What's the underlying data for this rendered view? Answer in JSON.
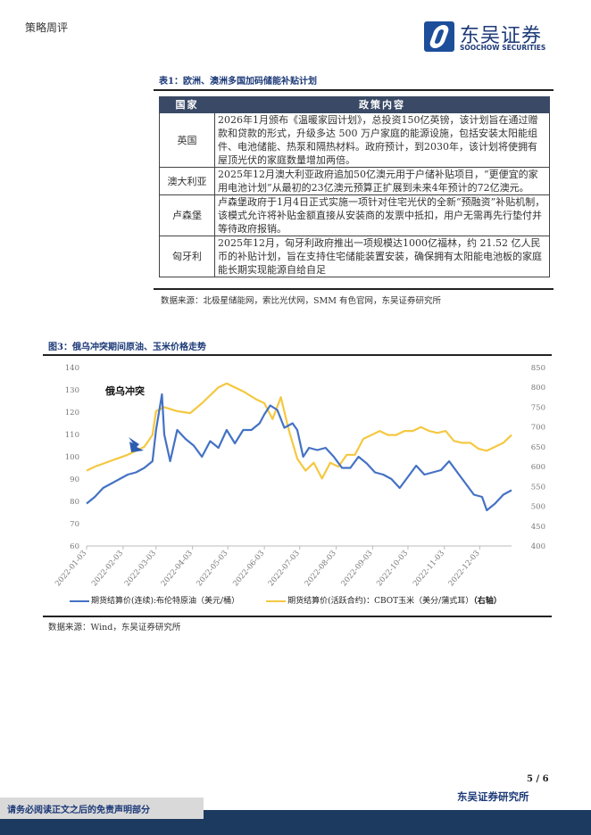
{
  "header": {
    "title": "策略周评",
    "logo_cn": "东吴证券",
    "logo_en": "SOOCHOW SECURITIES"
  },
  "table1": {
    "caption": "表1：欧洲、澳洲多国加码储能补贴计划",
    "headers": [
      "国家",
      "政策内容"
    ],
    "rows": [
      {
        "country": "英国",
        "content": "2026年1月颁布《温暖家园计划》，总投资150亿英镑，该计划旨在通过赠款和贷款的形式，升级多达 500 万户家庭的能源设施，包括安装太阳能组件、电池储能、热泵和隔热材料。政府预计，到2030年，该计划将使拥有屋顶光伏的家庭数量增加两倍。"
      },
      {
        "country": "澳大利亚",
        "content": "2025年12月澳大利亚政府追加50亿澳元用于户储补贴项目，“更便宜的家用电池计划”从最初的23亿澳元预算正扩展到未来4年预计的72亿澳元。"
      },
      {
        "country": "卢森堡",
        "content": "卢森堡政府于1月4日正式实施一项针对住宅光伏的全新“预融资”补贴机制，该模式允许将补贴金额直接从安装商的发票中抵扣，用户无需再先行垫付并等待政府报销。"
      },
      {
        "country": "匈牙利",
        "content": "2025年12月，匈牙利政府推出一项规模达1000亿福林，约 21.52 亿人民币的补贴计划，旨在支持住宅储能装置安装，确保拥有太阳能电池板的家庭能长期实现能源自给自足"
      }
    ],
    "source": "数据来源：北极星储能网，索比光伏网，SMM 有色官网，东吴证券研究所"
  },
  "figure3": {
    "caption": "图3：俄乌冲突期间原油、玉米价格走势",
    "source": "数据来源：Wind，东吴证券研究所"
  },
  "chart_data": {
    "type": "line",
    "title": "俄乌冲突期间原油、玉米价格走势",
    "annotation": "俄乌冲突",
    "x_ticks": [
      "2022-01-03",
      "2022-02-03",
      "2022-03-03",
      "2022-04-03",
      "2022-05-03",
      "2022-06-03",
      "2022-07-03",
      "2022-08-03",
      "2022-09-03",
      "2022-10-03",
      "2022-11-03",
      "2022-12-03"
    ],
    "x_tick_days": [
      3,
      34,
      62,
      93,
      123,
      154,
      184,
      215,
      246,
      276,
      307,
      337
    ],
    "xlim_days": [
      3,
      364
    ],
    "y_left": {
      "ylim": [
        60,
        140
      ],
      "ticks": [
        "60",
        "70",
        "80",
        "90",
        "100",
        "110",
        "120",
        "130",
        "140"
      ]
    },
    "y_right": {
      "ylim": [
        400,
        850
      ],
      "ticks": [
        "400",
        "450",
        "500",
        "550",
        "600",
        "650",
        "700",
        "750",
        "800",
        "850"
      ]
    },
    "series": [
      {
        "name": "期货结算价(连续):布伦特原油（美元/桶）",
        "axis": "left",
        "color": "#4472c4",
        "x": [
          3,
          10,
          17,
          24,
          31,
          38,
          45,
          52,
          59,
          62,
          67,
          69,
          74,
          80,
          87,
          94,
          101,
          108,
          115,
          122,
          129,
          136,
          143,
          150,
          154,
          159,
          165,
          171,
          178,
          182,
          187,
          192,
          199,
          206,
          213,
          220,
          227,
          234,
          241,
          248,
          255,
          262,
          269,
          276,
          283,
          290,
          297,
          304,
          311,
          318,
          325,
          332,
          339,
          343,
          350,
          357,
          364
        ],
        "values": [
          79,
          82,
          86,
          88,
          90,
          92,
          93,
          95,
          98,
          112,
          128,
          110,
          98,
          112,
          108,
          105,
          100,
          107,
          104,
          112,
          106,
          112,
          112,
          115,
          119,
          123,
          121,
          113,
          115,
          112,
          100,
          104,
          103,
          104,
          100,
          95,
          95,
          100,
          97,
          93,
          92,
          90,
          86,
          91,
          96,
          92,
          93,
          94,
          98,
          93,
          88,
          83,
          82,
          76,
          79,
          83,
          85
        ]
      },
      {
        "name": "期货结算价(活跃合约)：CBOT玉米（美分/蒲式耳）",
        "axis": "right",
        "color": "#f5c842",
        "x": [
          3,
          10,
          24,
          38,
          52,
          59,
          62,
          69,
          80,
          91,
          101,
          115,
          122,
          136,
          147,
          154,
          161,
          168,
          175,
          182,
          189,
          196,
          203,
          210,
          217,
          224,
          231,
          238,
          245,
          252,
          259,
          266,
          273,
          280,
          287,
          294,
          301,
          308,
          315,
          322,
          329,
          336,
          343,
          350,
          357,
          364
        ],
        "values": [
          590,
          600,
          615,
          630,
          650,
          680,
          740,
          750,
          740,
          735,
          760,
          800,
          810,
          790,
          770,
          760,
          720,
          775,
          690,
          620,
          590,
          610,
          570,
          610,
          600,
          630,
          630,
          670,
          680,
          690,
          680,
          680,
          690,
          690,
          700,
          690,
          685,
          690,
          665,
          660,
          660,
          645,
          640,
          650,
          660,
          680
        ]
      }
    ],
    "legend_suffix": "（右轴）",
    "legend_placement": "bottom"
  },
  "footer": {
    "page": "5 / 6",
    "org": "东吴证券研究所",
    "disclaimer": "请务必阅读正文之后的免责声明部分"
  }
}
